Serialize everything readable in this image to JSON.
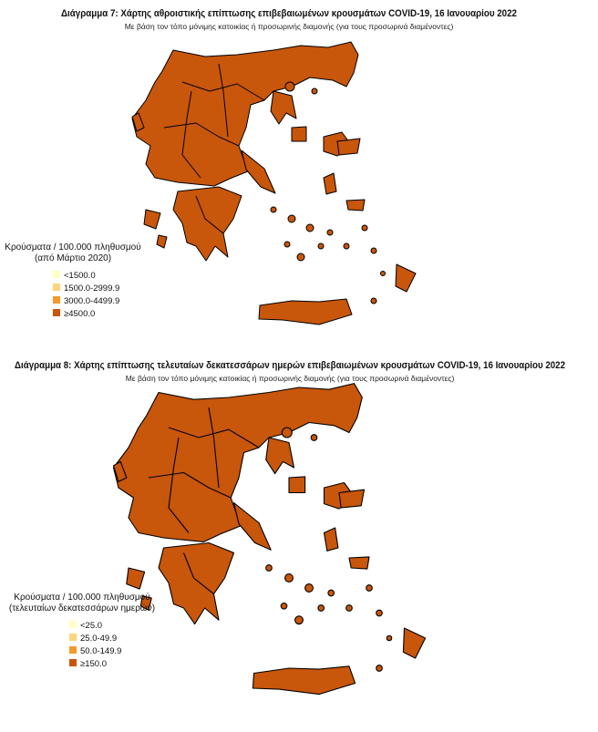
{
  "maps": [
    {
      "title": "Διάγραμμα 7: Χάρτης αθροιστικής επίπτωσης επιβεβαιωμένων κρουσμάτων COVID-19, 16 Ιανουαρίου 2022",
      "subtitle": "Με βάση τον τόπο μόνιμης κατοικίας ή προσωρινής διαμονής (για τους προσωρινά διαμένοντες)",
      "legend": {
        "title": [
          "Κρούσματα / 100.000 πληθυσμού",
          "(από Μάρτιο 2020)"
        ],
        "items": [
          {
            "label": "<1500.0",
            "color": "#ffffc2"
          },
          {
            "label": "1500.0-2999.9",
            "color": "#fdd57a"
          },
          {
            "label": "3000.0-4499.9",
            "color": "#f59a2a"
          },
          {
            "label": "≥4500.0",
            "color": "#c8560b"
          }
        ]
      },
      "region_color": "#c8560b"
    },
    {
      "title": "Διάγραμμα 8: Χάρτης επίπτωσης τελευταίων δεκατεσσάρων ημερών επιβεβαιωμένων κρουσμάτων COVID-19, 16 Ιανουαρίου 2022",
      "subtitle": "Με βάση τον τόπο μόνιμης κατοικίας ή προσωρινής διαμονής (για τους προσωρινά διαμένοντες)",
      "legend": {
        "title": [
          "Κρούσματα / 100.000 πληθυσμού",
          "(τελευταίων δεκατεσσάρων ημερών)"
        ],
        "items": [
          {
            "label": "<25.0",
            "color": "#ffffc2"
          },
          {
            "label": "25.0-49.9",
            "color": "#fdd57a"
          },
          {
            "label": "50.0-149.9",
            "color": "#f59a2a"
          },
          {
            "label": "≥150.0",
            "color": "#c8560b"
          }
        ]
      },
      "region_color": "#c8560b"
    }
  ]
}
